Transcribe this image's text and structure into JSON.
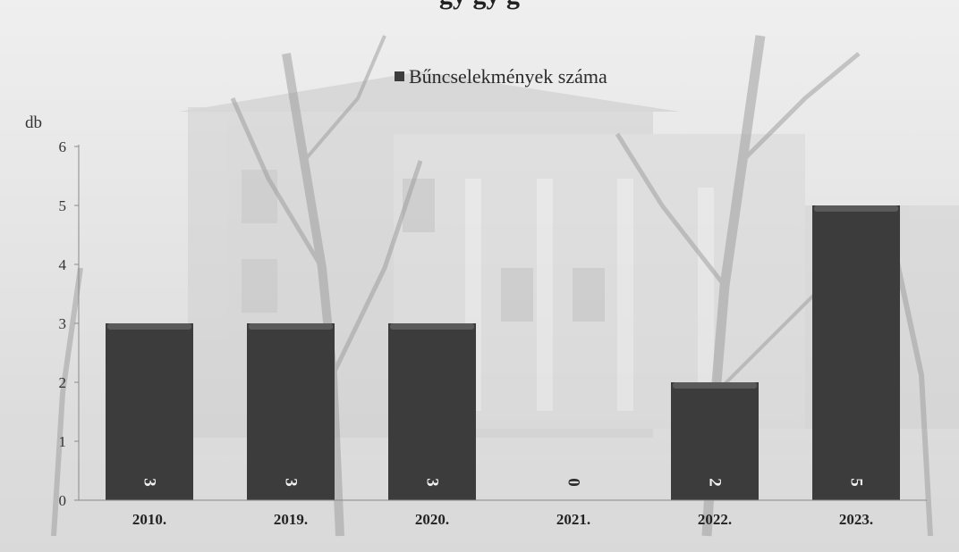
{
  "page": {
    "title_fragment": "gy   gy   g"
  },
  "colors": {
    "bar": "#3c3c3c",
    "bar_top": "#5a5a5a",
    "data_label_on_bar": "#f2f2f2",
    "data_label_zero": "#2b2b2b",
    "axis": "#8a8a8a",
    "legend_marker": "#3c3c3c"
  },
  "chart_data": {
    "type": "bar",
    "title": "",
    "categories": [
      "2010.",
      "2019.",
      "2020.",
      "2021.",
      "2022.",
      "2023."
    ],
    "series": [
      {
        "name": "Bűncselekmények száma",
        "values": [
          3,
          3,
          3,
          0,
          2,
          5
        ]
      }
    ],
    "data_labels": [
      "3",
      "3",
      "3",
      "0",
      "2",
      "5"
    ],
    "ylabel": "db",
    "xlabel": "",
    "ylim": [
      0,
      6
    ],
    "yticks": [
      0,
      1,
      2,
      3,
      4,
      5,
      6
    ],
    "grid": false,
    "legend": "top-center",
    "data_label_rotation": "vertical",
    "background": "photo of a classical building with bare trees (faded)"
  }
}
